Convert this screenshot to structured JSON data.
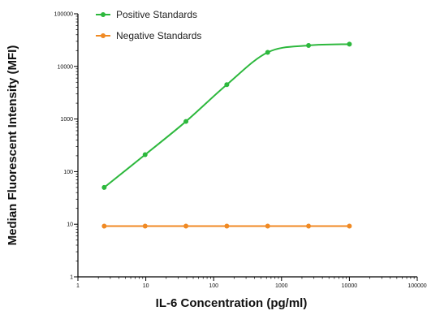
{
  "chart_data": {
    "type": "scatter",
    "xlabel": "IL-6 Concentration (pg/ml)",
    "ylabel": "Median  Fluorescent Intensity  (MFI)",
    "x_scale": "log",
    "y_scale": "log",
    "xlim": [
      1,
      100000
    ],
    "ylim": [
      1,
      100000
    ],
    "x_ticks": [
      1,
      10,
      100,
      1000,
      10000,
      100000
    ],
    "x_tick_labels": [
      "1",
      "10",
      "100",
      "1000",
      "10000",
      "100000"
    ],
    "y_ticks": [
      1,
      10,
      100,
      1000,
      10000,
      100000
    ],
    "y_tick_labels": [
      "1",
      "10",
      "100",
      "1000",
      "10000",
      "100000"
    ],
    "grid": false,
    "legend_position": "top-left",
    "series": [
      {
        "name": "Positive Standards",
        "color": "#2db83d",
        "marker": "circle",
        "fit": "sigmoidal curve",
        "x": [
          2.44,
          9.77,
          39.06,
          156.25,
          625,
          2500,
          10000
        ],
        "y": [
          50,
          210,
          900,
          4500,
          18500,
          25000,
          26500
        ]
      },
      {
        "name": "Negative Standards",
        "color": "#f08a24",
        "marker": "circle",
        "fit": "flat line",
        "x": [
          2.44,
          9.77,
          39.06,
          156.25,
          625,
          2500,
          10000
        ],
        "y": [
          9.2,
          9.2,
          9.2,
          9.2,
          9.2,
          9.2,
          9.2
        ]
      }
    ]
  }
}
